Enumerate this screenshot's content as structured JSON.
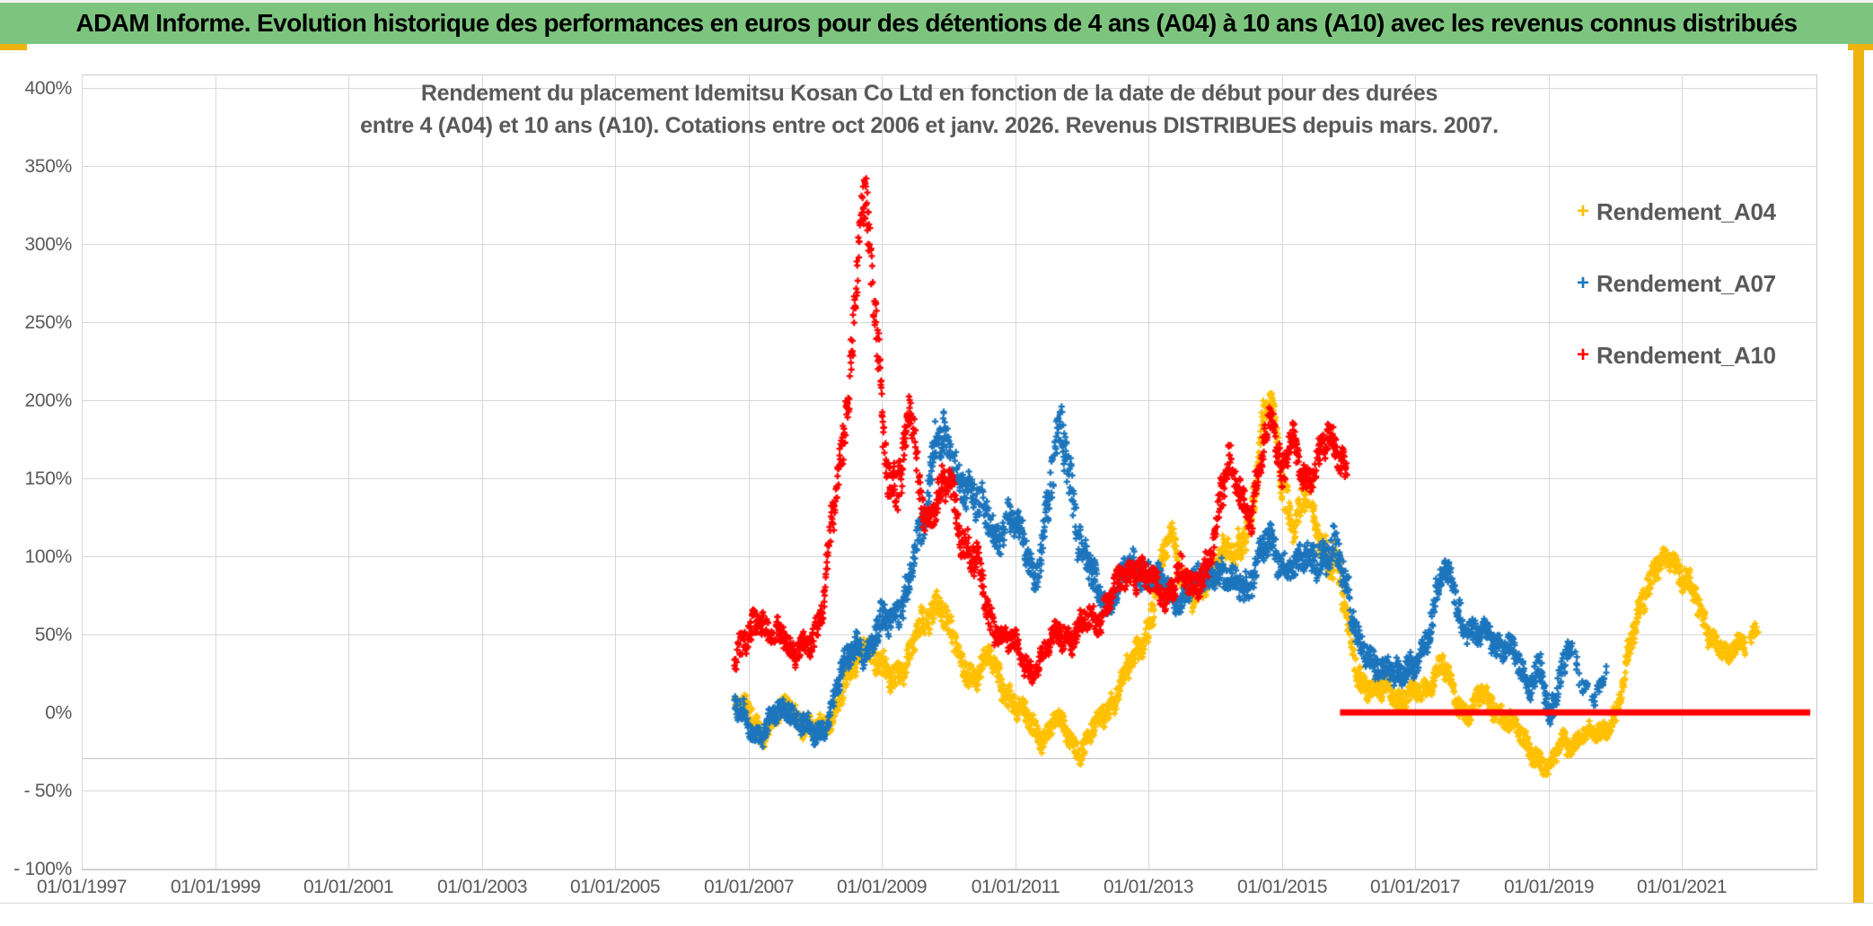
{
  "banner": {
    "text": "ADAM Informe. Evolution historique des performances en euros pour des détentions de 4 ans (A04) à 10 ans (A10) avec les revenus connus distribués",
    "bg_color": "#7dc57f",
    "text_color": "#000000"
  },
  "accent_frame_color": "#efb310",
  "chart_data": {
    "type": "scatter",
    "title": "Rendement du placement Idemitsu Kosan Co Ltd en fonction de la date de début pour des durées",
    "subtitle": "entre 4 (A04) et 10 ans (A10). Cotations entre oct 2006 et janv. 2026. Revenus DISTRIBUES depuis mars. 2007.",
    "grid": true,
    "legend_position": "right",
    "x_axis": {
      "type": "date",
      "tick_labels": [
        "01/01/1997",
        "01/01/1999",
        "01/01/2001",
        "01/01/2003",
        "01/01/2005",
        "01/01/2007",
        "01/01/2009",
        "01/01/2011",
        "01/01/2013",
        "01/01/2015",
        "01/01/2017",
        "01/01/2019",
        "01/01/2021"
      ],
      "tick_years": [
        1997,
        1999,
        2001,
        2003,
        2005,
        2007,
        2009,
        2011,
        2013,
        2015,
        2017,
        2019,
        2021
      ],
      "axis_min_year": 1997.0,
      "axis_max_year": 2023.0
    },
    "y_axis": {
      "tick_labels": [
        "400%",
        "350%",
        "300%",
        "250%",
        "200%",
        "150%",
        "100%",
        "50%",
        "0%",
        "- 50%",
        "- 100%"
      ],
      "tick_pcts": [
        400,
        350,
        300,
        250,
        200,
        150,
        100,
        50,
        0,
        -50,
        -100
      ],
      "min_pct": -100,
      "max_pct": 400,
      "major_step_pct": 50,
      "zero_gridline_drawn": false,
      "extra_axis_line_pct": -29.3
    },
    "legend": [
      {
        "label": "Rendement_A04",
        "color": "#FFC000"
      },
      {
        "label": "Rendement_A07",
        "color": "#1C75BC"
      },
      {
        "label": "Rendement_A10",
        "color": "#FE0000"
      }
    ],
    "marker": "plus",
    "series_note": "Daily start-date scatter; band_anchors = [start_year, center_return_pct, band_halfwidth_pct] sampled from the plotted cloud",
    "series": [
      {
        "name": "Rendement_A04",
        "color": "#FFC000",
        "start": "oct 2006",
        "band_anchors": [
          [
            2006.79,
            5,
            10
          ],
          [
            2007.0,
            0,
            12
          ],
          [
            2007.2,
            -12,
            10
          ],
          [
            2007.4,
            -5,
            10
          ],
          [
            2007.6,
            7,
            10
          ],
          [
            2007.8,
            -6,
            10
          ],
          [
            2008.0,
            -15,
            11
          ],
          [
            2008.2,
            -5,
            10
          ],
          [
            2008.4,
            10,
            12
          ],
          [
            2008.6,
            30,
            14
          ],
          [
            2008.75,
            48,
            14
          ],
          [
            2008.9,
            34,
            14
          ],
          [
            2009.1,
            20,
            12
          ],
          [
            2009.3,
            30,
            12
          ],
          [
            2009.5,
            44,
            14
          ],
          [
            2009.7,
            60,
            14
          ],
          [
            2009.85,
            76,
            12
          ],
          [
            2010.0,
            54,
            14
          ],
          [
            2010.2,
            30,
            12
          ],
          [
            2010.4,
            25,
            12
          ],
          [
            2010.6,
            34,
            12
          ],
          [
            2010.8,
            20,
            12
          ],
          [
            2011.0,
            5,
            12
          ],
          [
            2011.2,
            -6,
            10
          ],
          [
            2011.4,
            -15,
            10
          ],
          [
            2011.6,
            -6,
            10
          ],
          [
            2011.8,
            -15,
            10
          ],
          [
            2012.0,
            -24,
            9
          ],
          [
            2012.2,
            -10,
            10
          ],
          [
            2012.4,
            5,
            11
          ],
          [
            2012.6,
            20,
            12
          ],
          [
            2012.8,
            34,
            12
          ],
          [
            2013.0,
            58,
            14
          ],
          [
            2013.2,
            94,
            14
          ],
          [
            2013.35,
            113,
            12
          ],
          [
            2013.5,
            90,
            14
          ],
          [
            2013.7,
            70,
            14
          ],
          [
            2013.9,
            84,
            14
          ],
          [
            2014.1,
            108,
            15
          ],
          [
            2014.3,
            95,
            14
          ],
          [
            2014.5,
            122,
            17
          ],
          [
            2014.7,
            182,
            18
          ],
          [
            2014.84,
            198,
            12
          ],
          [
            2015.0,
            150,
            18
          ],
          [
            2015.2,
            120,
            16
          ],
          [
            2015.4,
            138,
            14
          ],
          [
            2015.6,
            110,
            15
          ],
          [
            2015.8,
            94,
            18
          ],
          [
            2016.0,
            54,
            14
          ],
          [
            2016.2,
            20,
            12
          ],
          [
            2016.4,
            10,
            10
          ],
          [
            2016.6,
            20,
            10
          ],
          [
            2016.8,
            5,
            10
          ],
          [
            2017.0,
            12,
            10
          ],
          [
            2017.2,
            20,
            10
          ],
          [
            2017.4,
            29,
            11
          ],
          [
            2017.6,
            10,
            10
          ],
          [
            2017.8,
            0,
            10
          ],
          [
            2018.0,
            10,
            10
          ],
          [
            2018.2,
            4,
            10
          ],
          [
            2018.4,
            -6,
            10
          ],
          [
            2018.6,
            -16,
            10
          ],
          [
            2018.8,
            -26,
            10
          ],
          [
            2019.0,
            -39,
            8
          ],
          [
            2019.2,
            -16,
            10
          ],
          [
            2019.4,
            -20,
            9
          ],
          [
            2019.6,
            -15,
            8
          ],
          [
            2019.8,
            -10,
            8
          ],
          [
            2020.0,
            -4,
            10
          ],
          [
            2020.12,
            16,
            12
          ],
          [
            2020.25,
            52,
            14
          ],
          [
            2020.4,
            74,
            14
          ],
          [
            2020.55,
            84,
            12
          ],
          [
            2020.7,
            94,
            12
          ],
          [
            2020.85,
            104,
            10
          ],
          [
            2021.0,
            86,
            12
          ],
          [
            2021.15,
            76,
            12
          ],
          [
            2021.3,
            64,
            12
          ],
          [
            2021.5,
            46,
            10
          ],
          [
            2021.7,
            31,
            10
          ],
          [
            2021.85,
            50,
            10
          ],
          [
            2022.0,
            44,
            10
          ],
          [
            2022.15,
            54,
            8
          ]
        ],
        "sparse_after": 2021.95
      },
      {
        "name": "Rendement_A07",
        "color": "#1C75BC",
        "start": "oct 2006",
        "band_anchors": [
          [
            2006.79,
            2,
            12
          ],
          [
            2007.0,
            -7,
            12
          ],
          [
            2007.2,
            -14,
            10
          ],
          [
            2007.4,
            -4,
            10
          ],
          [
            2007.6,
            5,
            10
          ],
          [
            2007.8,
            -9,
            11
          ],
          [
            2008.0,
            -17,
            10
          ],
          [
            2008.15,
            -6,
            10
          ],
          [
            2008.3,
            14,
            12
          ],
          [
            2008.5,
            34,
            12
          ],
          [
            2008.65,
            48,
            13
          ],
          [
            2008.8,
            40,
            14
          ],
          [
            2009.0,
            54,
            15
          ],
          [
            2009.2,
            68,
            15
          ],
          [
            2009.4,
            78,
            15
          ],
          [
            2009.6,
            115,
            24
          ],
          [
            2009.8,
            182,
            20
          ],
          [
            2009.95,
            172,
            20
          ],
          [
            2010.1,
            152,
            20
          ],
          [
            2010.3,
            148,
            16
          ],
          [
            2010.5,
            128,
            18
          ],
          [
            2010.7,
            110,
            15
          ],
          [
            2010.9,
            128,
            15
          ],
          [
            2011.1,
            108,
            15
          ],
          [
            2011.3,
            88,
            15
          ],
          [
            2011.5,
            135,
            24
          ],
          [
            2011.7,
            182,
            24
          ],
          [
            2011.85,
            148,
            24
          ],
          [
            2012.0,
            100,
            20
          ],
          [
            2012.2,
            80,
            15
          ],
          [
            2012.4,
            70,
            12
          ],
          [
            2012.6,
            84,
            14
          ],
          [
            2012.8,
            94,
            14
          ],
          [
            2013.0,
            89,
            14
          ],
          [
            2013.2,
            79,
            12
          ],
          [
            2013.5,
            75,
            12
          ],
          [
            2013.8,
            84,
            14
          ],
          [
            2014.0,
            94,
            14
          ],
          [
            2014.2,
            80,
            12
          ],
          [
            2014.5,
            85,
            14
          ],
          [
            2014.8,
            108,
            14
          ],
          [
            2015.0,
            99,
            14
          ],
          [
            2015.2,
            89,
            14
          ],
          [
            2015.5,
            104,
            16
          ],
          [
            2015.8,
            99,
            18
          ],
          [
            2016.0,
            78,
            15
          ],
          [
            2016.2,
            40,
            14
          ],
          [
            2016.4,
            25,
            12
          ],
          [
            2016.6,
            34,
            12
          ],
          [
            2016.8,
            20,
            12
          ],
          [
            2017.0,
            30,
            12
          ],
          [
            2017.2,
            54,
            14
          ],
          [
            2017.4,
            84,
            14
          ],
          [
            2017.55,
            88,
            12
          ],
          [
            2017.7,
            60,
            14
          ],
          [
            2017.9,
            45,
            12
          ],
          [
            2018.1,
            54,
            12
          ],
          [
            2018.3,
            40,
            12
          ],
          [
            2018.5,
            34,
            12
          ],
          [
            2018.7,
            20,
            12
          ],
          [
            2018.88,
            30,
            16
          ],
          [
            2019.0,
            -12,
            14
          ],
          [
            2019.15,
            22,
            14
          ],
          [
            2019.3,
            48,
            10
          ],
          [
            2019.5,
            14,
            10
          ],
          [
            2019.7,
            12,
            8
          ],
          [
            2019.87,
            32,
            8
          ]
        ],
        "sparse_after": 2019.35
      },
      {
        "name": "Rendement_A10",
        "color": "#FE0000",
        "start": "oct 2006",
        "band_anchors": [
          [
            2006.79,
            28,
            14
          ],
          [
            2006.95,
            52,
            14
          ],
          [
            2007.1,
            62,
            13
          ],
          [
            2007.3,
            45,
            12
          ],
          [
            2007.5,
            56,
            12
          ],
          [
            2007.7,
            36,
            11
          ],
          [
            2007.95,
            45,
            12
          ],
          [
            2008.1,
            70,
            14
          ],
          [
            2008.25,
            120,
            20
          ],
          [
            2008.4,
            160,
            22
          ],
          [
            2008.55,
            235,
            28
          ],
          [
            2008.68,
            335,
            25
          ],
          [
            2008.78,
            310,
            30
          ],
          [
            2008.88,
            255,
            30
          ],
          [
            2008.98,
            205,
            25
          ],
          [
            2009.1,
            155,
            22
          ],
          [
            2009.3,
            148,
            24
          ],
          [
            2009.42,
            195,
            16
          ],
          [
            2009.55,
            150,
            20
          ],
          [
            2009.7,
            122,
            16
          ],
          [
            2009.9,
            140,
            18
          ],
          [
            2010.05,
            148,
            20
          ],
          [
            2010.25,
            108,
            18
          ],
          [
            2010.45,
            88,
            16
          ],
          [
            2010.65,
            58,
            14
          ],
          [
            2010.85,
            46,
            12
          ],
          [
            2011.05,
            38,
            12
          ],
          [
            2011.25,
            27,
            10
          ],
          [
            2011.45,
            36,
            10
          ],
          [
            2011.65,
            54,
            12
          ],
          [
            2011.85,
            48,
            12
          ],
          [
            2012.05,
            56,
            12
          ],
          [
            2012.25,
            62,
            12
          ],
          [
            2012.45,
            76,
            13
          ],
          [
            2012.65,
            86,
            14
          ],
          [
            2012.85,
            95,
            15
          ],
          [
            2013.05,
            80,
            14
          ],
          [
            2013.25,
            74,
            12
          ],
          [
            2013.45,
            92,
            14
          ],
          [
            2013.65,
            76,
            12
          ],
          [
            2013.85,
            95,
            15
          ],
          [
            2014.05,
            125,
            18
          ],
          [
            2014.2,
            160,
            16
          ],
          [
            2014.35,
            148,
            15
          ],
          [
            2014.55,
            122,
            15
          ],
          [
            2014.72,
            170,
            18
          ],
          [
            2014.86,
            196,
            13
          ],
          [
            2015.0,
            152,
            18
          ],
          [
            2015.15,
            172,
            15
          ],
          [
            2015.3,
            148,
            15
          ],
          [
            2015.5,
            162,
            15
          ],
          [
            2015.7,
            172,
            16
          ],
          [
            2015.85,
            166,
            16
          ],
          [
            2015.98,
            158,
            14
          ]
        ],
        "max_point_pct": 357,
        "zero_segment": {
          "from_year": 2015.87,
          "to_year": 2022.92,
          "value_pct": 0
        }
      }
    ]
  }
}
